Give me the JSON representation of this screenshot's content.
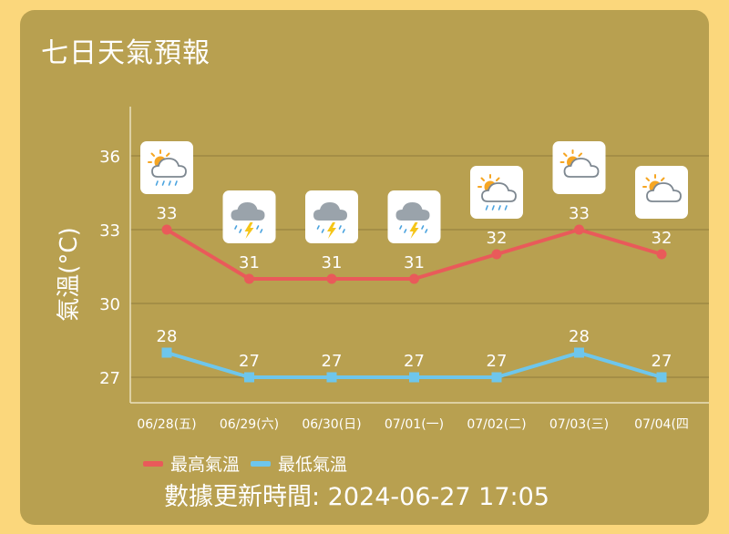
{
  "page": {
    "title": "七日天氣預報",
    "updated": "數據更新時間: 2024-06-27 17:05"
  },
  "chart_data": {
    "type": "line",
    "categories": [
      "06/28(五)",
      "06/29(六)",
      "06/30(日)",
      "07/01(一)",
      "07/02(二)",
      "07/03(三)",
      "07/04(四"
    ],
    "series": [
      {
        "name": "最高氣溫",
        "values": [
          33,
          31,
          31,
          31,
          32,
          33,
          32
        ],
        "color": "#e95a5a"
      },
      {
        "name": "最低氣溫",
        "values": [
          28,
          27,
          27,
          27,
          27,
          28,
          27
        ],
        "color": "#6ec6ec"
      }
    ],
    "ylabel": "氣溫(°C)",
    "yticks": [
      27,
      30,
      33,
      36
    ],
    "ylim": [
      26,
      38
    ],
    "weather_icons": [
      "partly-cloudy-rain-icon",
      "thunderstorm-icon",
      "thunderstorm-icon",
      "thunderstorm-icon",
      "partly-cloudy-rain-icon",
      "partly-cloudy-icon",
      "partly-cloudy-icon"
    ],
    "grid": true
  }
}
